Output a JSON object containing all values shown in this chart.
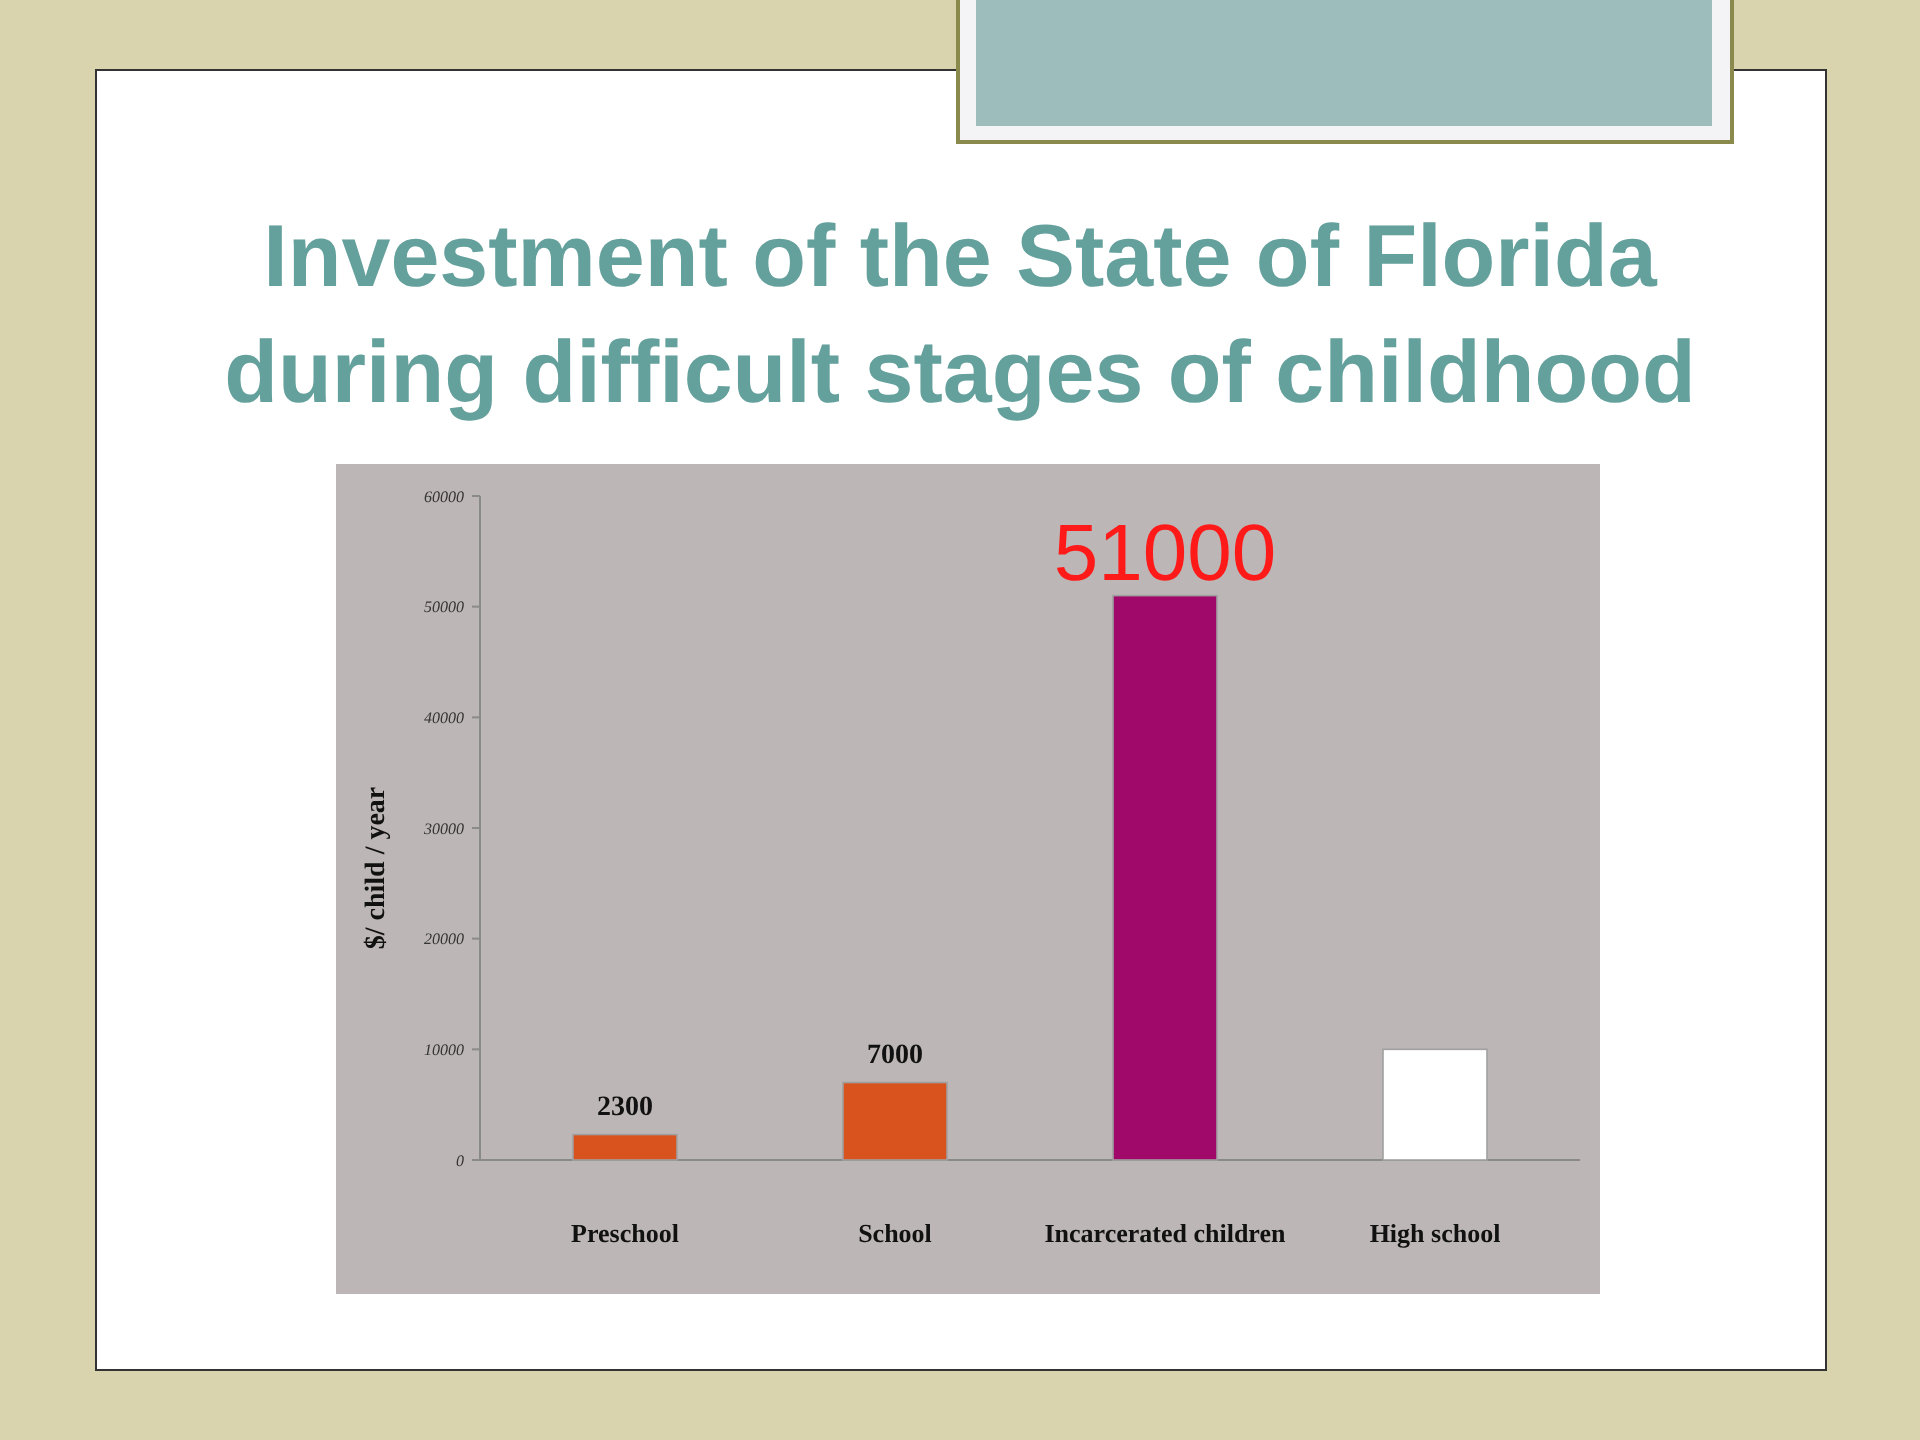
{
  "chart_data": {
    "type": "bar",
    "title": "Investment of the State of Florida during difficult stages of childhood",
    "ylabel": "$/ child / year",
    "categories": [
      "Preschool",
      "School",
      "Incarcerated children",
      "High school"
    ],
    "values": [
      2300,
      7000,
      51000,
      10000
    ],
    "colors": [
      "#d9531e",
      "#d9531e",
      "#a0086a",
      "#ffffff"
    ],
    "value_labels": [
      "2300",
      "7000",
      null,
      null
    ],
    "annotations": [
      {
        "text": "51000",
        "x": "Incarcerated children",
        "y": 51000
      }
    ],
    "ylim": [
      0,
      60000
    ],
    "yticks": [
      0,
      10000,
      20000,
      30000,
      40000,
      50000,
      60000
    ]
  }
}
